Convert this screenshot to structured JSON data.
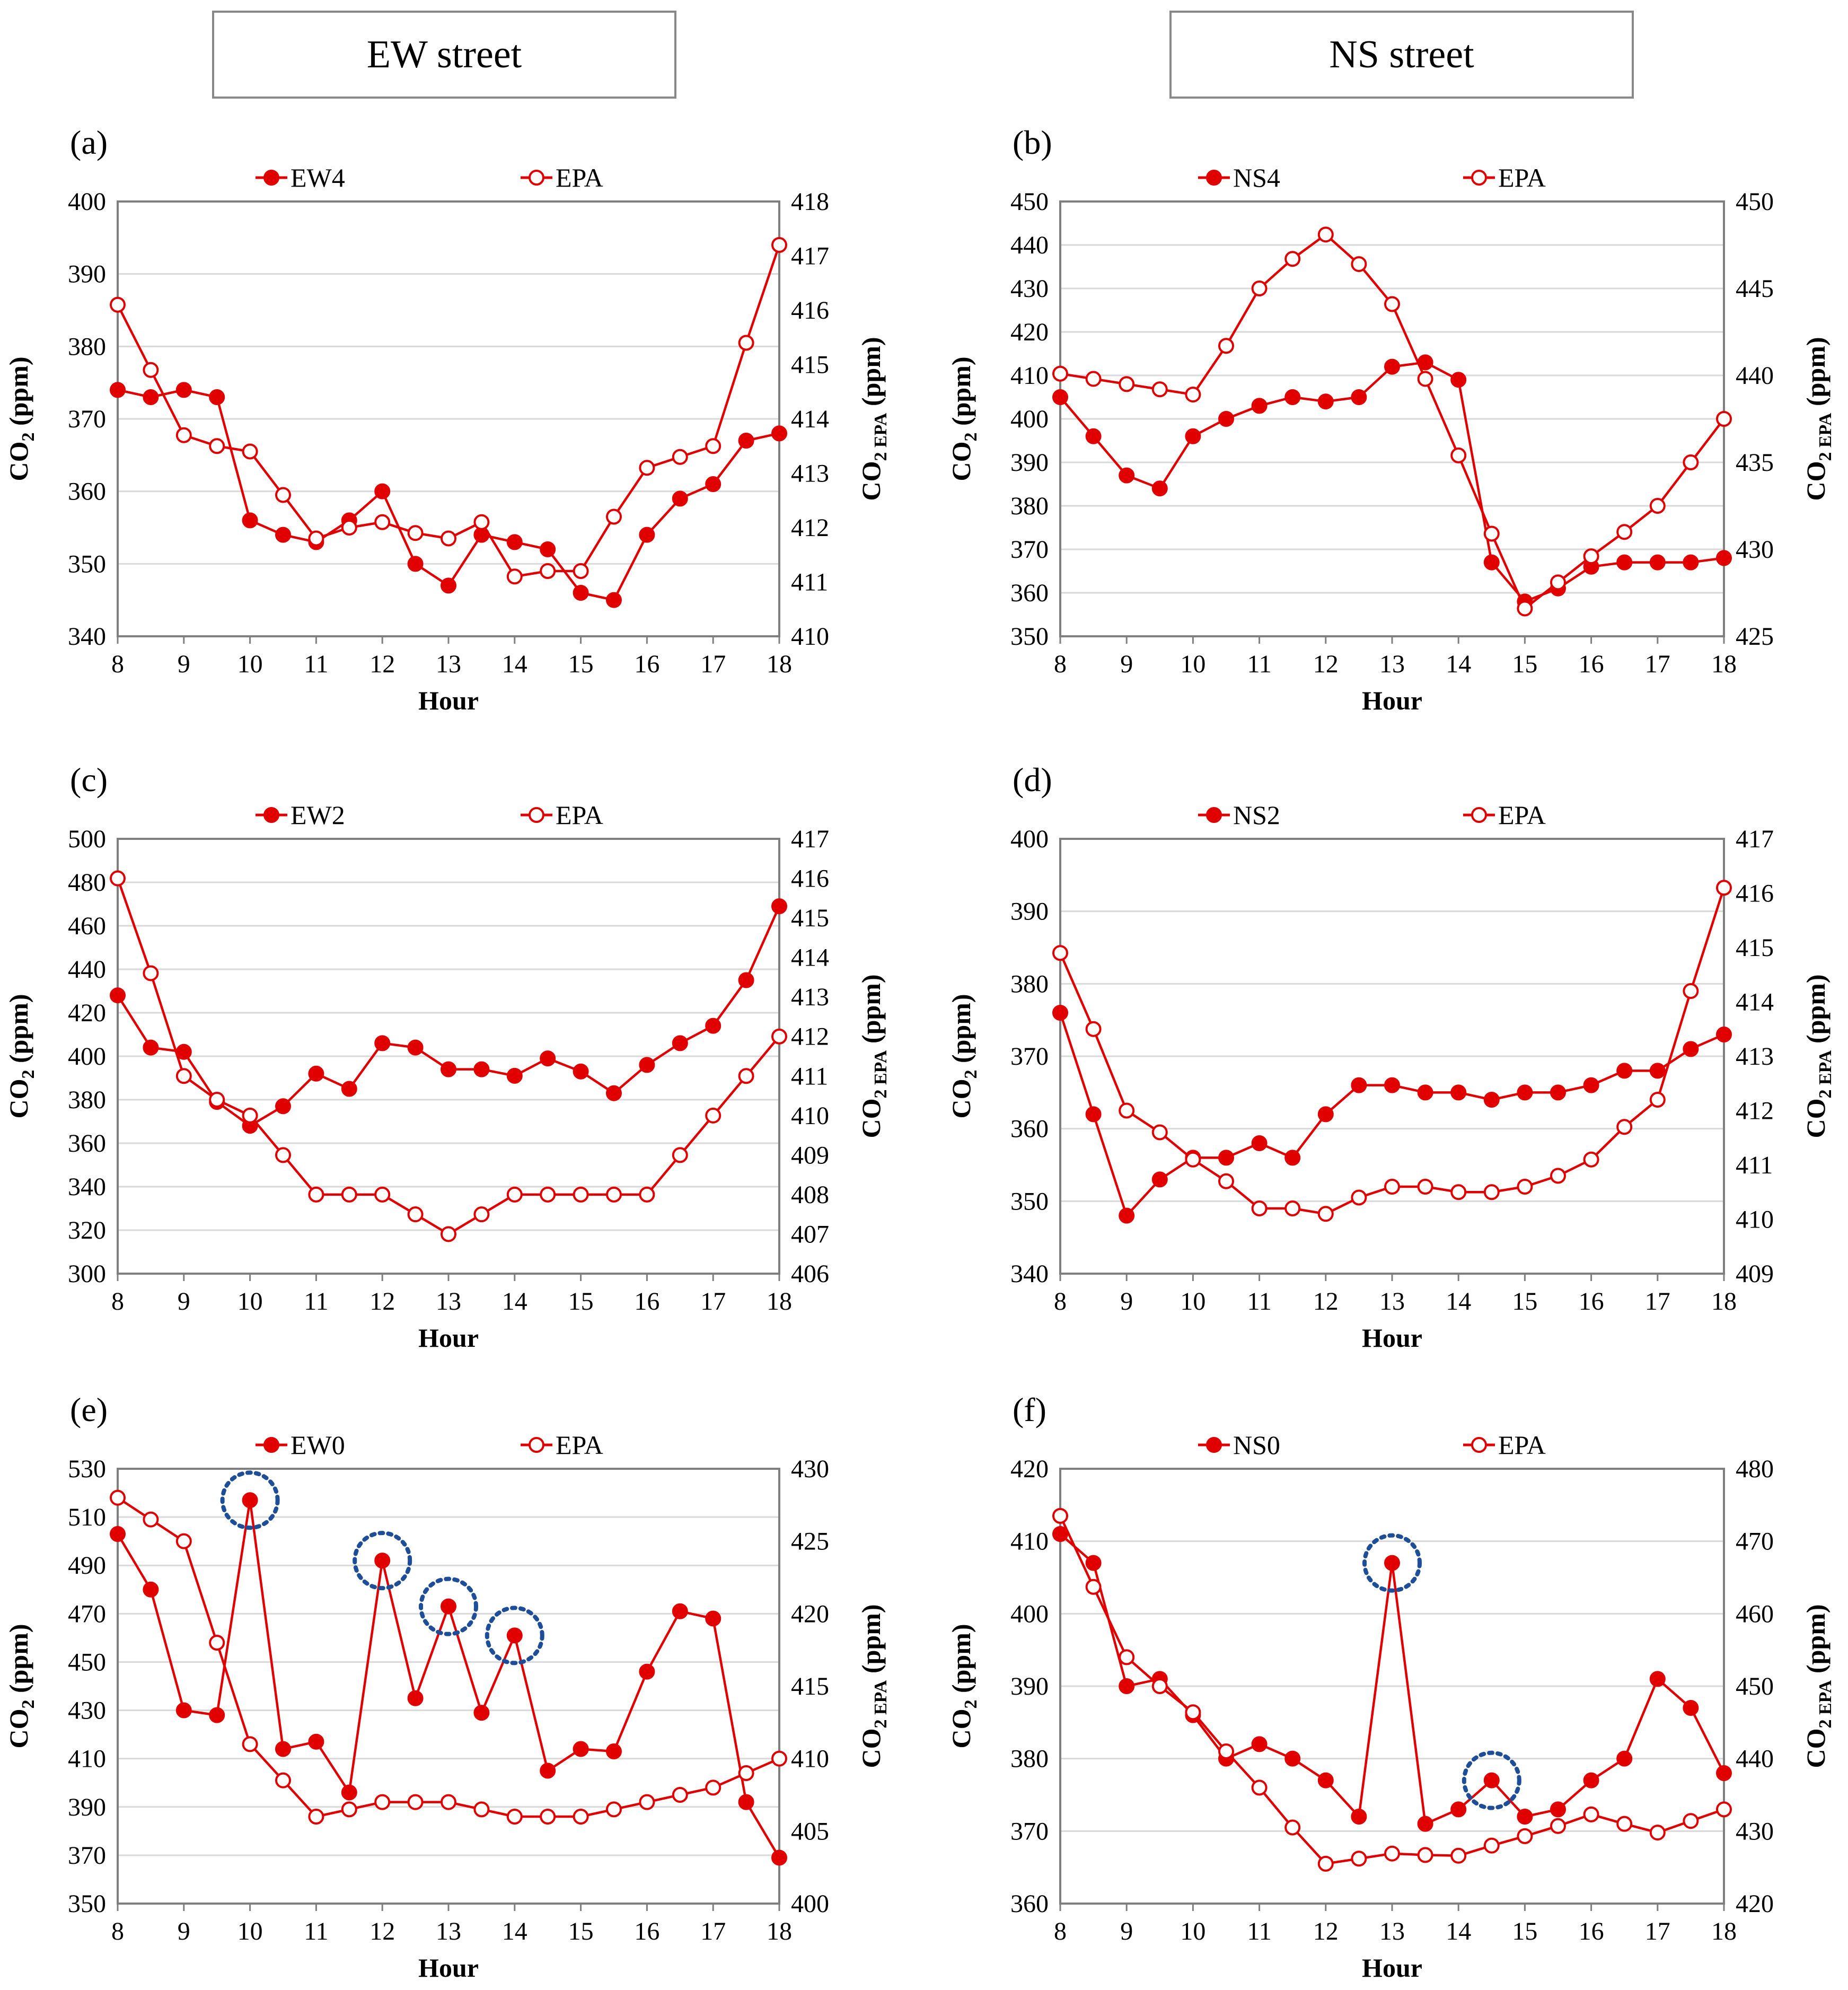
{
  "headers": {
    "left": "EW street",
    "right": "NS street"
  },
  "colors": {
    "series": "#e00000",
    "axis": "#7f7f7f",
    "grid": "#d9d9d9",
    "highlight": "#1f4e99"
  },
  "chart_data": [
    {
      "panel": "(a)",
      "type": "line",
      "xlabel": "Hour",
      "ylabel_left": "CO2 (ppm)",
      "ylabel_right": "CO2_EPA (ppm)",
      "ylim_left": [
        340,
        400
      ],
      "ystep_left": 10,
      "ylim_right": [
        410,
        418
      ],
      "ystep_right": 1,
      "xlim": [
        8,
        18
      ],
      "xticks": [
        8,
        9,
        10,
        11,
        12,
        13,
        14,
        15,
        16,
        17,
        18
      ],
      "legend": "top",
      "x": [
        8,
        8.5,
        9,
        9.5,
        10,
        10.5,
        11,
        11.5,
        12,
        12.5,
        13,
        13.5,
        14,
        14.5,
        15,
        15.5,
        16,
        16.5,
        17,
        17.5,
        18
      ],
      "series": [
        {
          "name": "EW4",
          "axis": "left",
          "marker": "filled",
          "values": [
            374,
            373,
            374,
            373,
            356,
            354,
            353,
            356,
            360,
            350,
            347,
            354,
            353,
            352,
            346,
            345,
            354,
            359,
            361,
            367,
            368
          ]
        },
        {
          "name": "EPA",
          "axis": "right",
          "marker": "open",
          "values": [
            416.1,
            414.9,
            413.7,
            413.5,
            413.4,
            412.6,
            411.8,
            412.0,
            412.1,
            411.9,
            411.8,
            412.1,
            411.1,
            411.2,
            411.2,
            412.2,
            413.1,
            413.3,
            413.5,
            415.4,
            417.2
          ]
        }
      ],
      "highlights": []
    },
    {
      "panel": "(b)",
      "type": "line",
      "xlabel": "Hour",
      "ylabel_left": "CO2 (ppm)",
      "ylabel_right": "CO2_EPA (ppm)",
      "ylim_left": [
        350,
        450
      ],
      "ystep_left": 10,
      "ylim_right": [
        425,
        450
      ],
      "ystep_right": 5,
      "xlim": [
        8,
        18
      ],
      "xticks": [
        8,
        9,
        10,
        11,
        12,
        13,
        14,
        15,
        16,
        17,
        18
      ],
      "legend": "top",
      "x": [
        8,
        8.5,
        9,
        9.5,
        10,
        10.5,
        11,
        11.5,
        12,
        12.5,
        13,
        13.5,
        14,
        14.5,
        15,
        15.5,
        16,
        16.5,
        17,
        17.5,
        18
      ],
      "series": [
        {
          "name": "NS4",
          "axis": "left",
          "marker": "filled",
          "values": [
            405,
            396,
            387,
            384,
            396,
            400,
            403,
            405,
            404,
            405,
            412,
            413,
            409,
            367,
            358,
            361,
            366,
            367,
            367,
            367,
            368
          ]
        },
        {
          "name": "EPA",
          "axis": "right",
          "marker": "open",
          "values": [
            440.1,
            439.8,
            439.5,
            439.2,
            438.9,
            441.7,
            445.0,
            446.7,
            448.1,
            446.4,
            444.1,
            439.8,
            435.4,
            430.9,
            426.6,
            428.1,
            429.6,
            431.0,
            432.5,
            435.0,
            437.5
          ]
        }
      ],
      "highlights": []
    },
    {
      "panel": "(c)",
      "type": "line",
      "xlabel": "Hour",
      "ylabel_left": "CO2 (ppm)",
      "ylabel_right": "CO2_EPA (ppm)",
      "ylim_left": [
        300,
        500
      ],
      "ystep_left": 20,
      "ylim_right": [
        406,
        417
      ],
      "ystep_right": 1,
      "xlim": [
        8,
        18
      ],
      "xticks": [
        8,
        9,
        10,
        11,
        12,
        13,
        14,
        15,
        16,
        17,
        18
      ],
      "legend": "top",
      "x": [
        8,
        8.5,
        9,
        9.5,
        10,
        10.5,
        11,
        11.5,
        12,
        12.5,
        13,
        13.5,
        14,
        14.5,
        15,
        15.5,
        16,
        16.5,
        17,
        17.5,
        18
      ],
      "series": [
        {
          "name": "EW2",
          "axis": "left",
          "marker": "filled",
          "values": [
            428,
            404,
            402,
            379,
            368,
            377,
            392,
            385,
            406,
            404,
            394,
            394,
            391,
            399,
            393,
            383,
            396,
            406,
            414,
            435,
            469
          ]
        },
        {
          "name": "EPA",
          "axis": "right",
          "marker": "open",
          "values": [
            416.0,
            413.6,
            411.0,
            410.4,
            410.0,
            409.0,
            408.0,
            408.0,
            408.0,
            407.5,
            407.0,
            407.5,
            408.0,
            408.0,
            408.0,
            408.0,
            408.0,
            409.0,
            410.0,
            411.0,
            412.0
          ]
        }
      ],
      "highlights": []
    },
    {
      "panel": "(d)",
      "type": "line",
      "xlabel": "Hour",
      "ylabel_left": "CO2 (ppm)",
      "ylabel_right": "CO2_EPA (ppm)",
      "ylim_left": [
        340,
        400
      ],
      "ystep_left": 10,
      "ylim_right": [
        409,
        417
      ],
      "ystep_right": 1,
      "xlim": [
        8,
        18
      ],
      "xticks": [
        8,
        9,
        10,
        11,
        12,
        13,
        14,
        15,
        16,
        17,
        18
      ],
      "legend": "top",
      "x": [
        8,
        8.5,
        9,
        9.5,
        10,
        10.5,
        11,
        11.5,
        12,
        12.5,
        13,
        13.5,
        14,
        14.5,
        15,
        15.5,
        16,
        16.5,
        17,
        17.5,
        18
      ],
      "series": [
        {
          "name": "NS2",
          "axis": "left",
          "marker": "filled",
          "values": [
            376,
            362,
            348,
            353,
            356,
            356,
            358,
            356,
            362,
            366,
            366,
            365,
            365,
            364,
            365,
            365,
            366,
            368,
            368,
            371,
            373
          ]
        },
        {
          "name": "EPA",
          "axis": "right",
          "marker": "open",
          "values": [
            414.9,
            413.5,
            412.0,
            411.6,
            411.1,
            410.7,
            410.2,
            410.2,
            410.1,
            410.4,
            410.6,
            410.6,
            410.5,
            410.5,
            410.6,
            410.8,
            411.1,
            411.7,
            412.2,
            414.2,
            416.1
          ]
        }
      ],
      "highlights": []
    },
    {
      "panel": "(e)",
      "type": "line",
      "xlabel": "Hour",
      "ylabel_left": "CO2 (ppm)",
      "ylabel_right": "CO2_EPA (ppm)",
      "ylim_left": [
        350,
        530
      ],
      "ystep_left": 20,
      "ylim_right": [
        400,
        430
      ],
      "ystep_right": 5,
      "xlim": [
        8,
        18
      ],
      "xticks": [
        8,
        9,
        10,
        11,
        12,
        13,
        14,
        15,
        16,
        17,
        18
      ],
      "legend": "top",
      "x": [
        8,
        8.5,
        9,
        9.5,
        10,
        10.5,
        11,
        11.5,
        12,
        12.5,
        13,
        13.5,
        14,
        14.5,
        15,
        15.5,
        16,
        16.5,
        17,
        17.5,
        18
      ],
      "series": [
        {
          "name": "EW0",
          "axis": "left",
          "marker": "filled",
          "values": [
            503,
            480,
            430,
            428,
            517,
            414,
            417,
            396,
            492,
            435,
            473,
            429,
            461,
            405,
            414,
            413,
            446,
            471,
            468,
            392,
            369
          ]
        },
        {
          "name": "EPA",
          "axis": "right",
          "marker": "open",
          "values": [
            428.0,
            426.5,
            425.0,
            418.0,
            411.0,
            408.5,
            406.0,
            406.5,
            407.0,
            407.0,
            407.0,
            406.5,
            406.0,
            406.0,
            406.0,
            406.5,
            407.0,
            407.5,
            408.0,
            409.0,
            410.0
          ]
        }
      ],
      "highlights": [
        10,
        12,
        13,
        14
      ]
    },
    {
      "panel": "(f)",
      "type": "line",
      "xlabel": "Hour",
      "ylabel_left": "CO2 (ppm)",
      "ylabel_right": "CO2_EPA (ppm)",
      "ylim_left": [
        360,
        420
      ],
      "ystep_left": 10,
      "ylim_right": [
        420,
        480
      ],
      "ystep_right": 10,
      "xlim": [
        8,
        18
      ],
      "xticks": [
        8,
        9,
        10,
        11,
        12,
        13,
        14,
        15,
        16,
        17,
        18
      ],
      "legend": "top",
      "x": [
        8,
        8.5,
        9,
        9.5,
        10,
        10.5,
        11,
        11.5,
        12,
        12.5,
        13,
        13.5,
        14,
        14.5,
        15,
        15.5,
        16,
        16.5,
        17,
        17.5,
        18
      ],
      "series": [
        {
          "name": "NS0",
          "axis": "left",
          "marker": "filled",
          "values": [
            411,
            407,
            390,
            391,
            386,
            380,
            382,
            380,
            377,
            372,
            407,
            371,
            373,
            377,
            372,
            373,
            377,
            380,
            391,
            387,
            378
          ]
        },
        {
          "name": "EPA",
          "axis": "right",
          "marker": "open",
          "values": [
            473.5,
            463.7,
            454.0,
            450.0,
            446.4,
            441.0,
            436.0,
            430.5,
            425.5,
            426.2,
            426.9,
            426.7,
            426.6,
            428.0,
            429.3,
            430.7,
            432.3,
            431.0,
            429.8,
            431.4,
            433.0
          ]
        }
      ],
      "highlights": [
        13,
        14.5
      ]
    }
  ]
}
